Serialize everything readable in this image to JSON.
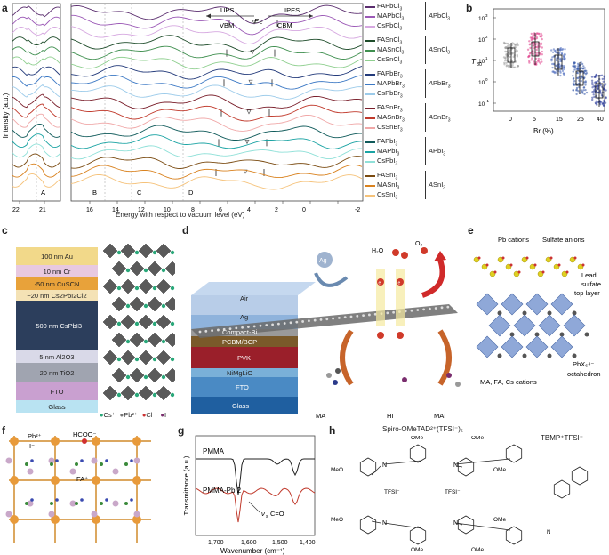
{
  "panels": {
    "a": {
      "label": "a",
      "ylabel": "Intensity (a.u.)",
      "xlabel": "Energy with respect to vacuum level (eV)",
      "left_ticks": [
        "22",
        "21"
      ],
      "right_ticks": [
        "16",
        "14",
        "12",
        "10",
        "8",
        "6",
        "4",
        "2",
        "0",
        "-2"
      ],
      "regions": [
        "A",
        "B",
        "C",
        "D"
      ],
      "ups_label": "UPS",
      "ipes_label": "IPES",
      "vbm_label": "VBM",
      "cbm_label": "CBM",
      "ef_label": "E",
      "ef_sub": "F",
      "groups": [
        {
          "name": "APbCl3",
          "prefix": "A",
          "core": "PbCl",
          "sub": "3",
          "items": [
            {
              "pre": "FAPbCl",
              "sub": "3",
              "color": "#5a2d6e"
            },
            {
              "pre": "MAPbCl",
              "sub": "3",
              "color": "#9b59b6"
            },
            {
              "pre": "CsPbCl",
              "sub": "3",
              "color": "#d6a8e0"
            }
          ]
        },
        {
          "name": "ASnCl3",
          "prefix": "A",
          "core": "SnCl",
          "sub": "3",
          "items": [
            {
              "pre": "FASnCl",
              "sub": "3",
              "color": "#1f4d2b"
            },
            {
              "pre": "MASnCl",
              "sub": "3",
              "color": "#3f8f4f"
            },
            {
              "pre": "CsSnCl",
              "sub": "3",
              "color": "#8fcf8f"
            }
          ]
        },
        {
          "name": "APbBr3",
          "prefix": "A",
          "core": "PbBr",
          "sub": "3",
          "items": [
            {
              "pre": "FAPbBr",
              "sub": "3",
              "color": "#233a7a"
            },
            {
              "pre": "MAPbBr",
              "sub": "3",
              "color": "#3b78c4"
            },
            {
              "pre": "CsPbBr",
              "sub": "3",
              "color": "#9ccbea"
            }
          ]
        },
        {
          "name": "ASnBr3",
          "prefix": "A",
          "core": "SnBr",
          "sub": "3",
          "items": [
            {
              "pre": "FASnBr",
              "sub": "3",
              "color": "#7a1f2b"
            },
            {
              "pre": "MASnBr",
              "sub": "3",
              "color": "#c0392b"
            },
            {
              "pre": "CsSnBr",
              "sub": "3",
              "color": "#f0a8a8"
            }
          ]
        },
        {
          "name": "APbI3",
          "prefix": "A",
          "core": "PbI",
          "sub": "3",
          "items": [
            {
              "pre": "FAPbI",
              "sub": "3",
              "color": "#0f5a5a"
            },
            {
              "pre": "MAPbI",
              "sub": "3",
              "color": "#1aa3a3"
            },
            {
              "pre": "CsPbI",
              "sub": "3",
              "color": "#8fe0d8"
            }
          ]
        },
        {
          "name": "ASnI3",
          "prefix": "A",
          "core": "SnI",
          "sub": "3",
          "items": [
            {
              "pre": "FASnI",
              "sub": "3",
              "color": "#7a4a10"
            },
            {
              "pre": "MASnI",
              "sub": "3",
              "color": "#d9821f"
            },
            {
              "pre": "CsSnI",
              "sub": "3",
              "color": "#f5c27a"
            }
          ]
        }
      ]
    },
    "b": {
      "label": "b",
      "ylabel": "T",
      "ylabel_sub": "80",
      "ytick_base": "10",
      "ytick_exps": [
        "3",
        "2",
        "1",
        "0",
        "-1"
      ],
      "xlabel": "Br (%)",
      "categories": [
        "0",
        "5",
        "15",
        "25",
        "40"
      ],
      "colors": [
        "#9e9e9e",
        "#e0408a",
        "#4d6bbd",
        "#3355a8",
        "#2a3a9a"
      ]
    },
    "c": {
      "label": "c",
      "layers": [
        {
          "label": "100 nm Au",
          "color": "#f2d98a"
        },
        {
          "label": "10 nm Cr",
          "color": "#e8c9e0"
        },
        {
          "label": "-50 nm CuSCN",
          "color": "#e8a23a"
        },
        {
          "label": "~20 nm Cs2PbI2Cl2",
          "color": "#f4e2b5"
        },
        {
          "label": "~500 nm CsPbI3",
          "color": "#2c3e5c"
        },
        {
          "label": "5 nm Al2O3",
          "color": "#d9d9e8"
        },
        {
          "label": "20 nm TiO2",
          "color": "#a0a4b0"
        },
        {
          "label": "FTO",
          "color": "#c9a0d0"
        },
        {
          "label": "Glass",
          "color": "#b9e3f2"
        }
      ],
      "legend": [
        "Cs⁺",
        "Pb²⁺",
        "Cl⁻",
        "I⁻"
      ]
    },
    "d": {
      "label": "d",
      "layers": [
        "Air",
        "Ag",
        "Compact-Bi",
        "PCBM/BCP",
        "PVK",
        "NiMgLiO",
        "FTO",
        "Glass"
      ],
      "ag_ball": "Ag",
      "h2o": "H₂O",
      "o2": "O₂",
      "species": [
        "MA",
        "HI",
        "MAI"
      ],
      "e_label": "e"
    },
    "e": {
      "label": "e",
      "pb_cations": "Pb cations",
      "sulfate": "Sulfate anions",
      "top_layer": [
        "Lead",
        "sulfate",
        "top layer"
      ],
      "octa": [
        "PbX₆⁴⁻",
        "octahedron"
      ],
      "cations": "MA, FA, Cs cations"
    },
    "f": {
      "label": "f",
      "pb": "Pb²⁺",
      "hcoo": "HCOO⁻",
      "iodide": "I⁻",
      "fa": "FA⁺"
    },
    "g": {
      "label": "g",
      "ylabel": "Transmittance (a.u.)",
      "xlabel": "Wavenumber (cm⁻¹)",
      "ticks": [
        "1,700",
        "1,600",
        "1,500",
        "1,400"
      ],
      "series": [
        "PMMA",
        "PMMA-PbI2"
      ],
      "annotation": "C=O",
      "annotation_prefix": "ν",
      "annotation_sub": "s"
    },
    "h": {
      "label": "h",
      "title": "Spiro-OMeTAD²⁺(TFSI⁻)₂",
      "tbmp": "TBMP⁺TFSI⁻",
      "ome": "OMe",
      "meo": "MeO",
      "tfsi": "TFSI⁻"
    }
  }
}
